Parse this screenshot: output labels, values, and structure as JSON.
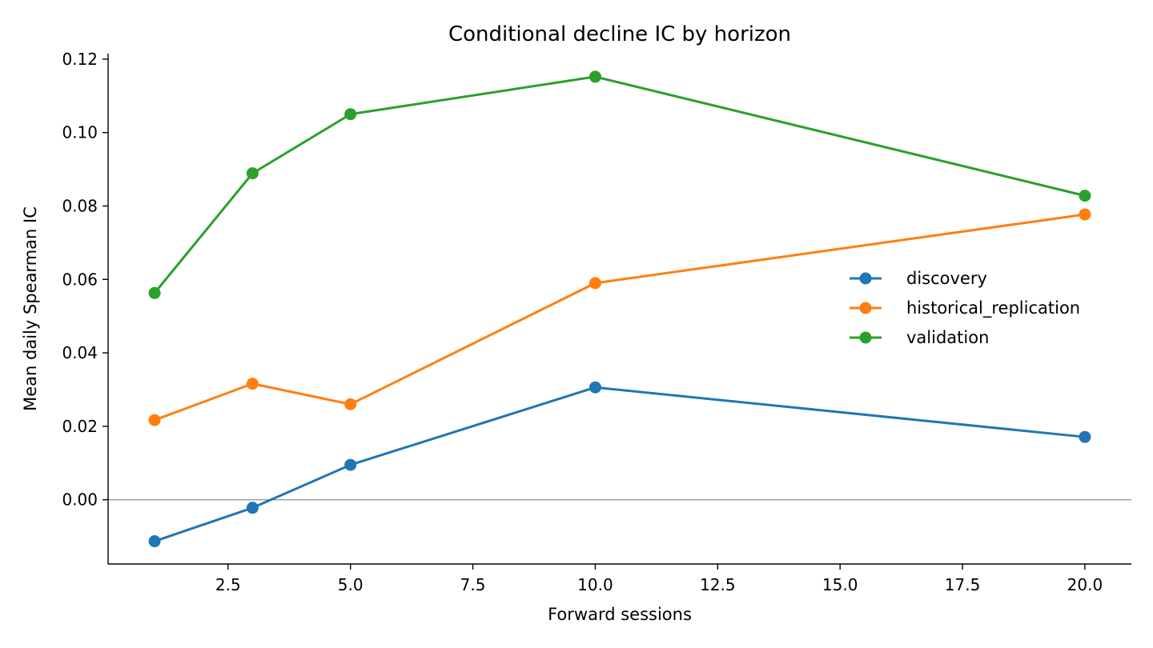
{
  "chart_data": {
    "type": "line",
    "title": "Conditional decline IC by horizon",
    "xlabel": "Forward sessions",
    "ylabel": "Mean daily Spearman IC",
    "xlim": [
      0.05,
      20.95
    ],
    "ylim": [
      -0.0175,
      0.1215
    ],
    "x": [
      1,
      3,
      5,
      10,
      20
    ],
    "xticks": [
      2.5,
      5.0,
      7.5,
      10.0,
      12.5,
      15.0,
      17.5,
      20.0
    ],
    "xtick_labels": [
      "2.5",
      "5.0",
      "7.5",
      "10.0",
      "12.5",
      "15.0",
      "17.5",
      "20.0"
    ],
    "yticks": [
      0.0,
      0.02,
      0.04,
      0.06,
      0.08,
      0.1,
      0.12
    ],
    "ytick_labels": [
      "0.00",
      "0.02",
      "0.04",
      "0.06",
      "0.08",
      "0.10",
      "0.12"
    ],
    "reference_line_y": 0.0,
    "legend_position": "center-right",
    "grid": false,
    "series": [
      {
        "name": "discovery",
        "color": "#1f77b4",
        "values": [
          -0.0113,
          -0.0022,
          0.0095,
          0.0306,
          0.0171
        ]
      },
      {
        "name": "historical_replication",
        "color": "#ff7f0e",
        "values": [
          0.0217,
          0.0316,
          0.026,
          0.059,
          0.0777
        ]
      },
      {
        "name": "validation",
        "color": "#2ca02c",
        "values": [
          0.0563,
          0.0889,
          0.105,
          0.1152,
          0.0828
        ]
      }
    ]
  }
}
